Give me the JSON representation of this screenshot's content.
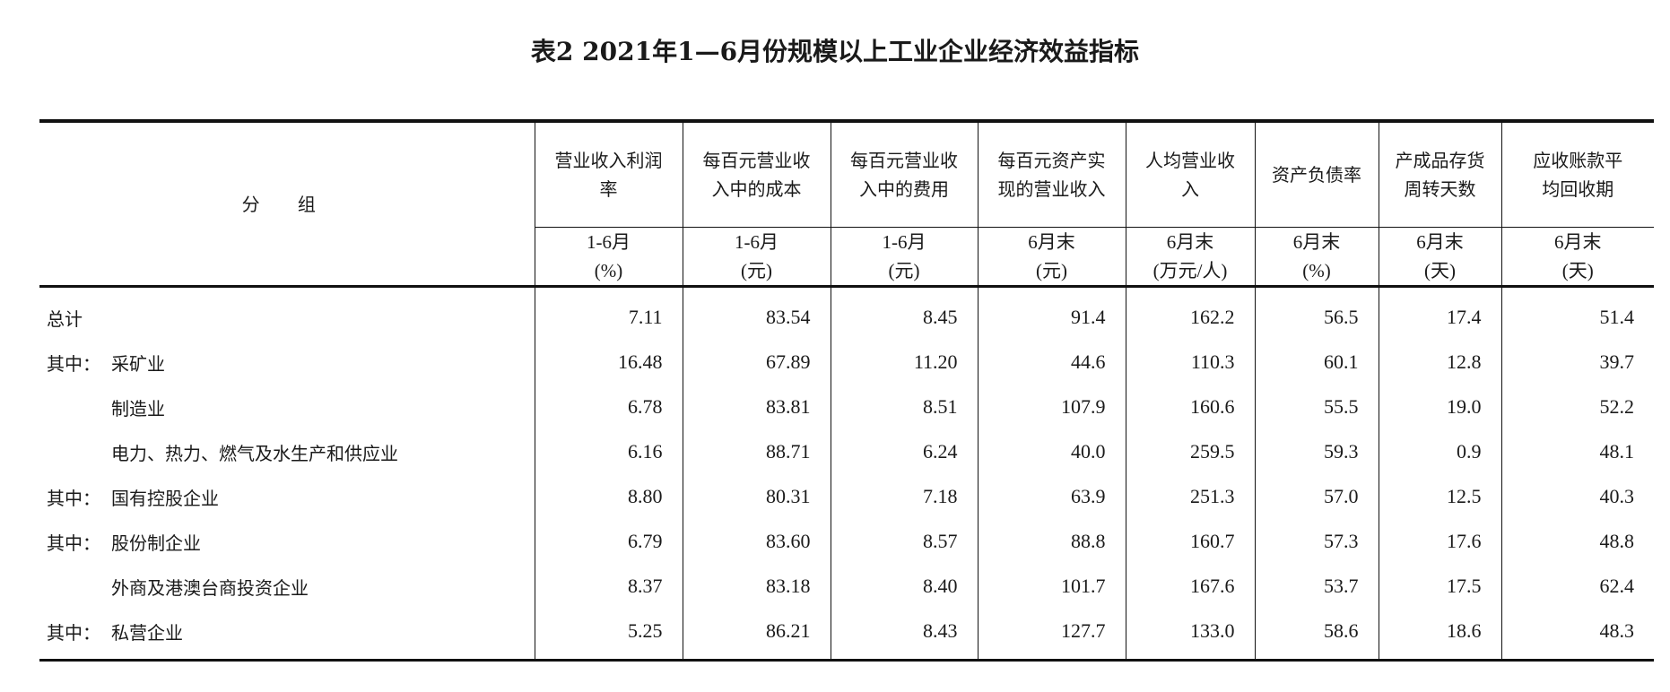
{
  "title": "表2  2021年1—6月份规模以上工业企业经济效益指标",
  "group_header": "分 组",
  "columns": [
    {
      "name": "营业收入利润率",
      "line1": "营业收入利润",
      "line2": "率",
      "period": "1-6月",
      "unit": "(%)"
    },
    {
      "name": "每百元营业收入中的成本",
      "line1": "每百元营业收",
      "line2": "入中的成本",
      "period": "1-6月",
      "unit": "(元)"
    },
    {
      "name": "每百元营业收入中的费用",
      "line1": "每百元营业收",
      "line2": "入中的费用",
      "period": "1-6月",
      "unit": "(元)"
    },
    {
      "name": "每百元资产实现的营业收入",
      "line1": "每百元资产实",
      "line2": "现的营业收入",
      "period": "6月末",
      "unit": "(元)"
    },
    {
      "name": "人均营业收入",
      "line1": "人均营业收",
      "line2": "入",
      "period": "6月末",
      "unit": "(万元/人)"
    },
    {
      "name": "资产负债率",
      "line1": "资产负债率",
      "line2": "",
      "period": "6月末",
      "unit": "(%)"
    },
    {
      "name": "产成品存货周转天数",
      "line1": "产成品存货",
      "line2": "周转天数",
      "period": "6月末",
      "unit": "(天)"
    },
    {
      "name": "应收账款平均回收期",
      "line1": "应收账款平",
      "line2": "均回收期",
      "period": "6月末",
      "unit": "(天)"
    }
  ],
  "rows": [
    {
      "prefix": "总计",
      "label": "",
      "values": [
        "7.11",
        "83.54",
        "8.45",
        "91.4",
        "162.2",
        "56.5",
        "17.4",
        "51.4"
      ]
    },
    {
      "prefix": "其中：",
      "label": "采矿业",
      "values": [
        "16.48",
        "67.89",
        "11.20",
        "44.6",
        "110.3",
        "60.1",
        "12.8",
        "39.7"
      ]
    },
    {
      "prefix": "",
      "label": "制造业",
      "values": [
        "6.78",
        "83.81",
        "8.51",
        "107.9",
        "160.6",
        "55.5",
        "19.0",
        "52.2"
      ]
    },
    {
      "prefix": "",
      "label": "电力、热力、燃气及水生产和供应业",
      "values": [
        "6.16",
        "88.71",
        "6.24",
        "40.0",
        "259.5",
        "59.3",
        "0.9",
        "48.1"
      ]
    },
    {
      "prefix": "其中：",
      "label": "国有控股企业",
      "values": [
        "8.80",
        "80.31",
        "7.18",
        "63.9",
        "251.3",
        "57.0",
        "12.5",
        "40.3"
      ]
    },
    {
      "prefix": "其中：",
      "label": "股份制企业",
      "values": [
        "6.79",
        "83.60",
        "8.57",
        "88.8",
        "160.7",
        "57.3",
        "17.6",
        "48.8"
      ]
    },
    {
      "prefix": "",
      "label": "外商及港澳台商投资企业",
      "values": [
        "8.37",
        "83.18",
        "8.40",
        "101.7",
        "167.6",
        "53.7",
        "17.5",
        "62.4"
      ]
    },
    {
      "prefix": "其中：",
      "label": "私营企业",
      "values": [
        "5.25",
        "86.21",
        "8.43",
        "127.7",
        "133.0",
        "58.6",
        "18.6",
        "48.3"
      ]
    }
  ]
}
